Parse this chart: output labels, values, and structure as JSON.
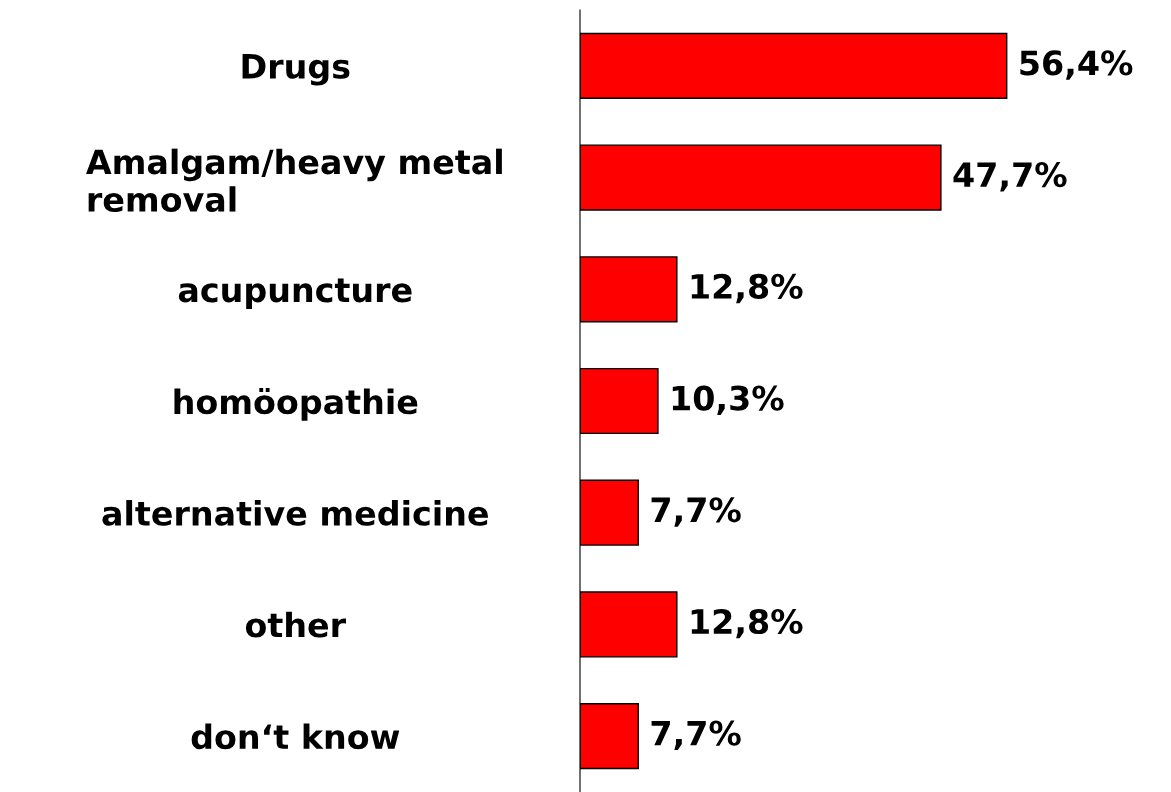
{
  "chart_data": {
    "type": "bar",
    "orientation": "horizontal",
    "categories": [
      "Drugs",
      "Amalgam/heavy metal\nremoval",
      "acupuncture",
      "homöopathie",
      "alternative medicine",
      "other",
      "don‘t know"
    ],
    "values": [
      56.4,
      47.7,
      12.8,
      10.3,
      7.7,
      12.8,
      7.7
    ],
    "value_labels": [
      "56,4%",
      "47,7%",
      "12,8%",
      "10,3%",
      "7,7%",
      "12,8%",
      "7,7%"
    ],
    "color": "#ff0000",
    "grid": false,
    "legend": false,
    "tick_labels": "y"
  }
}
